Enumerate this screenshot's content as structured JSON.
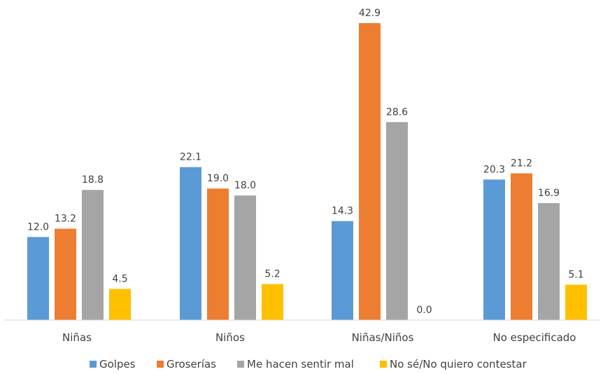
{
  "chart_data": {
    "type": "bar",
    "categories": [
      "Niñas",
      "Niños",
      "Niñas/Niños",
      "No especificado"
    ],
    "series": [
      {
        "name": "Golpes",
        "color": "#5B9BD5",
        "values": [
          12.0,
          22.1,
          14.3,
          20.3
        ],
        "labels": [
          "12.0",
          "22.1",
          "14.3",
          "20.3"
        ]
      },
      {
        "name": "Groserías",
        "color": "#ED7D31",
        "values": [
          13.2,
          19.0,
          42.9,
          21.2
        ],
        "labels": [
          "13.2",
          "19.0",
          "42.9",
          "21.2"
        ]
      },
      {
        "name": "Me hacen sentir mal",
        "color": "#A5A5A5",
        "values": [
          18.8,
          18.0,
          28.6,
          16.9
        ],
        "labels": [
          "18.8",
          "18.0",
          "28.6",
          "16.9"
        ]
      },
      {
        "name": "No sé/No quiero contestar",
        "color": "#FFC000",
        "values": [
          4.5,
          5.2,
          0.0,
          5.1
        ],
        "labels": [
          "4.5",
          "5.2",
          "0.0",
          "5.1"
        ]
      }
    ],
    "ylim": [
      0,
      42.9
    ],
    "grid": false,
    "legend": "bottom"
  }
}
